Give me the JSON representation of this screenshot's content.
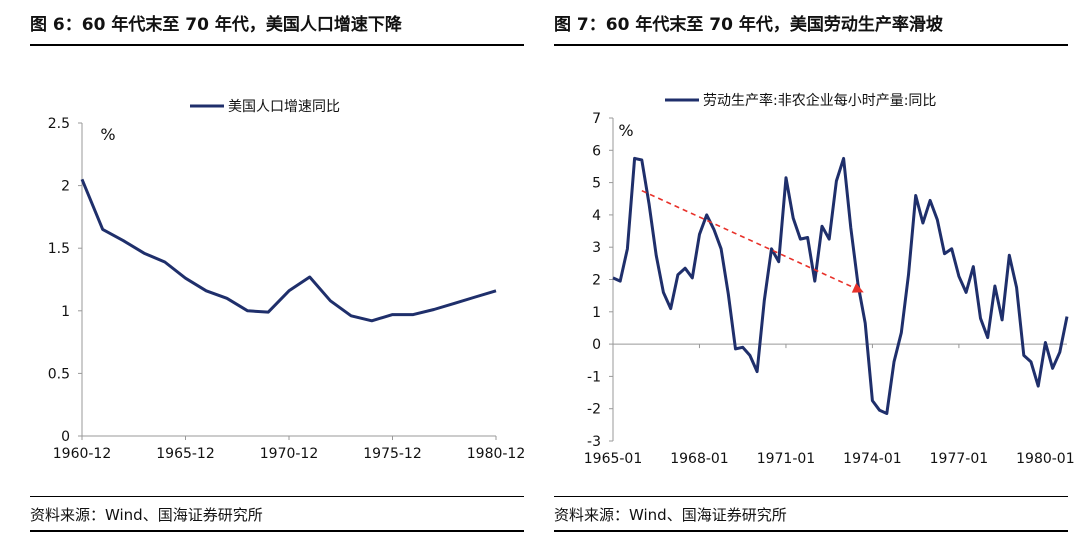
{
  "left": {
    "title": "图 6：60 年代末至 70 年代，美国人口增速下降",
    "source": "资料来源：Wind、国海证券研究所"
  },
  "right": {
    "title": "图 7：60 年代末至 70 年代，美国劳动生产率滑坡",
    "source": "资料来源：Wind、国海证券研究所"
  },
  "chart_data": [
    {
      "type": "line",
      "title": "",
      "unit_label": "%",
      "legend_position": "top-center",
      "xlim": [
        1960,
        1980
      ],
      "ylim": [
        0,
        2.5
      ],
      "y_ticks": [
        0,
        0.5,
        1,
        1.5,
        2,
        2.5
      ],
      "y_tick_labels": [
        "0",
        "0.5",
        "1",
        "1.5",
        "2",
        "2.5"
      ],
      "x_ticks": [
        1960,
        1965,
        1970,
        1975,
        1980
      ],
      "x_tick_labels": [
        "1960-12",
        "1965-12",
        "1970-12",
        "1975-12",
        "1980-12"
      ],
      "series": [
        {
          "name": "美国人口增速同比",
          "color": "#1f2f6b",
          "x": [
            1960,
            1961,
            1962,
            1963,
            1964,
            1965,
            1966,
            1967,
            1968,
            1969,
            1970,
            1971,
            1972,
            1973,
            1974,
            1975,
            1976,
            1977,
            1978,
            1979,
            1980
          ],
          "values": [
            2.05,
            1.65,
            1.56,
            1.46,
            1.39,
            1.26,
            1.16,
            1.1,
            1.0,
            0.99,
            1.16,
            1.27,
            1.08,
            0.96,
            0.92,
            0.97,
            0.97,
            1.01,
            1.06,
            1.11,
            1.16
          ]
        }
      ]
    },
    {
      "type": "line",
      "title": "",
      "unit_label": "%",
      "legend_position": "top-center",
      "xlim": [
        1965.0,
        1980.75
      ],
      "ylim": [
        -3,
        7
      ],
      "y_ticks": [
        -3,
        -2,
        -1,
        0,
        1,
        2,
        3,
        4,
        5,
        6,
        7
      ],
      "y_tick_labels": [
        "-3",
        "-2",
        "-1",
        "0",
        "1",
        "2",
        "3",
        "4",
        "5",
        "6",
        "7"
      ],
      "x_ticks": [
        1965.0,
        1968.0,
        1971.0,
        1974.0,
        1977.0,
        1980.0
      ],
      "x_tick_labels": [
        "1965-01",
        "1968-01",
        "1971-01",
        "1974-01",
        "1977-01",
        "1980-01"
      ],
      "trend_arrow": {
        "color": "#e8312a",
        "from": [
          1966.0,
          4.75
        ],
        "to": [
          1973.7,
          1.6
        ]
      },
      "series": [
        {
          "name": "劳动生产率:非农企业每小时产量:同比",
          "color": "#1f2f6b",
          "x": [
            1965.0,
            1965.25,
            1965.5,
            1965.75,
            1966.0,
            1966.25,
            1966.5,
            1966.75,
            1967.0,
            1967.25,
            1967.5,
            1967.75,
            1968.0,
            1968.25,
            1968.5,
            1968.75,
            1969.0,
            1969.25,
            1969.5,
            1969.75,
            1970.0,
            1970.25,
            1970.5,
            1970.75,
            1971.0,
            1971.25,
            1971.5,
            1971.75,
            1972.0,
            1972.25,
            1972.5,
            1972.75,
            1973.0,
            1973.25,
            1973.5,
            1973.75,
            1974.0,
            1974.25,
            1974.5,
            1974.75,
            1975.0,
            1975.25,
            1975.5,
            1975.75,
            1976.0,
            1976.25,
            1976.5,
            1976.75,
            1977.0,
            1977.25,
            1977.5,
            1977.75,
            1978.0,
            1978.25,
            1978.5,
            1978.75,
            1979.0,
            1979.25,
            1979.5,
            1979.75,
            1980.0,
            1980.25,
            1980.5,
            1980.75
          ],
          "values": [
            2.05,
            1.95,
            2.95,
            5.75,
            5.7,
            4.35,
            2.75,
            1.6,
            1.1,
            2.15,
            2.35,
            2.05,
            3.4,
            4.0,
            3.55,
            2.95,
            1.55,
            -0.15,
            -0.1,
            -0.35,
            -0.85,
            1.35,
            2.95,
            2.55,
            5.15,
            3.9,
            3.25,
            3.3,
            1.95,
            3.65,
            3.25,
            5.05,
            5.75,
            3.6,
            1.85,
            0.65,
            -1.75,
            -2.05,
            -2.15,
            -0.55,
            0.35,
            2.15,
            4.6,
            3.75,
            4.45,
            3.85,
            2.8,
            2.95,
            2.1,
            1.6,
            2.4,
            0.8,
            0.2,
            1.8,
            0.75,
            2.75,
            1.75,
            -0.35,
            -0.55,
            -1.3,
            0.05,
            -0.75,
            -0.25,
            0.85
          ]
        }
      ]
    }
  ]
}
